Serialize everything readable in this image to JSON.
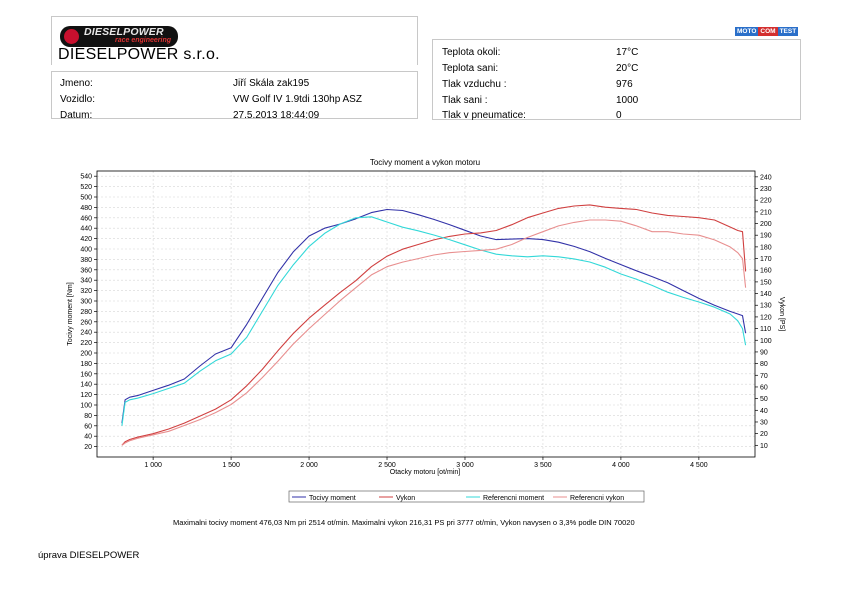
{
  "company": {
    "logo_text": "DIESELPOWER",
    "logo_tagline": "race engineering",
    "name": "DIESELPOWER s.r.o."
  },
  "brand_logo": [
    "MOTO",
    "COM",
    "TEST"
  ],
  "info": {
    "jmeno_label": "Jmeno:",
    "jmeno_value": "Jiří Skála zak195",
    "vozidlo_label": "Vozidlo:",
    "vozidlo_value": "VW Golf IV 1.9tdi 130hp ASZ",
    "datum_label": "Datum:",
    "datum_value": "27.5.2013 18:44:09"
  },
  "conditions": {
    "teplota_okoli_label": "Teplota okoli:",
    "teplota_okoli_value": "17°C",
    "teplota_sani_label": "Teplota sani:",
    "teplota_sani_value": "20°C",
    "tlak_vzduchu_label": "Tlak vzduchu :",
    "tlak_vzduchu_value": "976",
    "tlak_sani_label": "Tlak sani :",
    "tlak_sani_value": "1000",
    "tlak_pneu_label": "Tlak v pneumatice:",
    "tlak_pneu_value": "0"
  },
  "summary": "Maximalni tocivy moment 476,03 Nm pri 2514 ot/min.  Maximalni vykon 216,31 PS pri 3777 ot/min,  Vykon navysen o 3,3% podle DIN 70020",
  "footer": "úprava DIESELPOWER",
  "chart_data": {
    "type": "line",
    "title": "Tocivy moment a vykon motoru",
    "xlabel": "Otacky motoru [ot/min]",
    "ylabel": "Tocivy moment [Nm]",
    "y2label": "Vykon [PS]",
    "xlim": [
      640,
      4860
    ],
    "ylim": [
      0,
      550
    ],
    "y2lim": [
      0,
      245
    ],
    "xticks": [
      1000,
      1500,
      2000,
      2500,
      3000,
      3500,
      4000,
      4500
    ],
    "xtick_labels": [
      "1 000",
      "1 500",
      "2 000",
      "2 500",
      "3 000",
      "3 500",
      "4 000",
      "4 500"
    ],
    "yticks": [
      20,
      40,
      60,
      80,
      100,
      120,
      140,
      160,
      180,
      200,
      220,
      240,
      260,
      280,
      300,
      320,
      340,
      360,
      380,
      400,
      420,
      440,
      460,
      480,
      500,
      520,
      540
    ],
    "y2ticks": [
      10,
      20,
      30,
      40,
      50,
      60,
      70,
      80,
      90,
      100,
      110,
      120,
      130,
      140,
      150,
      160,
      170,
      180,
      190,
      200,
      210,
      220,
      230,
      240
    ],
    "grid": true,
    "legend_position": "bottom",
    "series": [
      {
        "name": "Tocivy moment",
        "axis": "left",
        "color": "#3232a8",
        "x": [
          800,
          820,
          850,
          900,
          1000,
          1100,
          1200,
          1300,
          1400,
          1500,
          1600,
          1700,
          1800,
          1900,
          2000,
          2100,
          2200,
          2300,
          2400,
          2500,
          2600,
          2700,
          2800,
          2900,
          3000,
          3100,
          3200,
          3300,
          3400,
          3500,
          3600,
          3700,
          3800,
          3900,
          4000,
          4100,
          4200,
          4300,
          4400,
          4500,
          4600,
          4700,
          4750,
          4780,
          4800
        ],
        "y": [
          65,
          110,
          115,
          118,
          128,
          138,
          150,
          175,
          198,
          210,
          255,
          305,
          355,
          395,
          425,
          440,
          448,
          458,
          470,
          476,
          474,
          466,
          457,
          447,
          436,
          425,
          418,
          419,
          420,
          418,
          413,
          405,
          395,
          382,
          370,
          358,
          347,
          335,
          320,
          305,
          292,
          280,
          275,
          272,
          238
        ]
      },
      {
        "name": "Vykon",
        "axis": "right",
        "color": "#d04040",
        "x": [
          800,
          820,
          850,
          900,
          1000,
          1100,
          1200,
          1300,
          1400,
          1500,
          1600,
          1700,
          1800,
          1900,
          2000,
          2100,
          2200,
          2300,
          2400,
          2500,
          2600,
          2700,
          2800,
          2900,
          3000,
          3100,
          3200,
          3300,
          3400,
          3500,
          3600,
          3700,
          3800,
          3900,
          4000,
          4100,
          4200,
          4300,
          4400,
          4500,
          4600,
          4700,
          4750,
          4780,
          4800
        ],
        "y": [
          10,
          13,
          15,
          17,
          20,
          24,
          29,
          35,
          41,
          49,
          61,
          75,
          91,
          106,
          119,
          130,
          141,
          151,
          163,
          172,
          178,
          182,
          186,
          189,
          191,
          192,
          194,
          199,
          205,
          209,
          213,
          215,
          216,
          214,
          213,
          212,
          209,
          207,
          206,
          205,
          203,
          197,
          194,
          193,
          159
        ]
      },
      {
        "name": "Referencni moment",
        "axis": "left",
        "color": "#33d8d8",
        "x": [
          800,
          820,
          850,
          900,
          1000,
          1100,
          1200,
          1300,
          1400,
          1500,
          1600,
          1700,
          1800,
          1900,
          2000,
          2100,
          2200,
          2300,
          2400,
          2500,
          2600,
          2700,
          2800,
          2900,
          3000,
          3100,
          3200,
          3300,
          3400,
          3500,
          3600,
          3700,
          3800,
          3900,
          4000,
          4100,
          4200,
          4300,
          4400,
          4500,
          4600,
          4700,
          4750,
          4780,
          4800
        ],
        "y": [
          60,
          105,
          110,
          113,
          122,
          132,
          142,
          165,
          185,
          198,
          230,
          280,
          330,
          370,
          405,
          430,
          448,
          460,
          462,
          452,
          442,
          435,
          427,
          418,
          408,
          398,
          390,
          387,
          385,
          387,
          385,
          381,
          375,
          365,
          352,
          342,
          330,
          317,
          307,
          298,
          288,
          275,
          262,
          247,
          215
        ]
      },
      {
        "name": "Referencni vykon",
        "axis": "right",
        "color": "#e88f8f",
        "x": [
          800,
          820,
          850,
          900,
          1000,
          1100,
          1200,
          1300,
          1400,
          1500,
          1600,
          1700,
          1800,
          1900,
          2000,
          2100,
          2200,
          2300,
          2400,
          2500,
          2600,
          2700,
          2800,
          2900,
          3000,
          3100,
          3200,
          3300,
          3400,
          3500,
          3600,
          3700,
          3800,
          3900,
          4000,
          4100,
          4200,
          4300,
          4400,
          4500,
          4600,
          4700,
          4750,
          4780,
          4800
        ],
        "y": [
          10,
          12,
          14,
          16,
          19,
          22,
          27,
          32,
          38,
          45,
          55,
          68,
          82,
          97,
          110,
          122,
          134,
          145,
          156,
          163,
          167,
          170,
          173,
          175,
          176,
          177,
          178,
          182,
          188,
          193,
          198,
          201,
          203,
          203,
          202,
          198,
          193,
          193,
          191,
          190,
          186,
          180,
          175,
          170,
          145
        ]
      }
    ]
  }
}
